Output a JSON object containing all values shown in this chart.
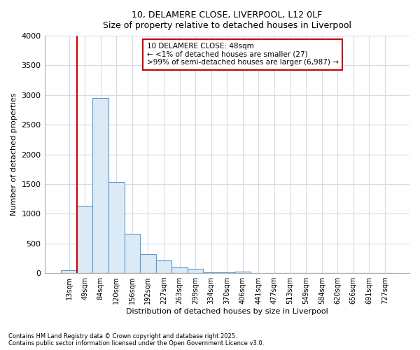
{
  "title_line1": "10, DELAMERE CLOSE, LIVERPOOL, L12 0LF",
  "title_line2": "Size of property relative to detached houses in Liverpool",
  "xlabel": "Distribution of detached houses by size in Liverpool",
  "ylabel": "Number of detached properties",
  "categories": [
    "13sqm",
    "49sqm",
    "84sqm",
    "120sqm",
    "156sqm",
    "192sqm",
    "227sqm",
    "263sqm",
    "299sqm",
    "334sqm",
    "370sqm",
    "406sqm",
    "441sqm",
    "477sqm",
    "513sqm",
    "549sqm",
    "584sqm",
    "620sqm",
    "656sqm",
    "691sqm",
    "727sqm"
  ],
  "values": [
    50,
    1130,
    2950,
    1530,
    660,
    320,
    210,
    100,
    70,
    10,
    10,
    30,
    0,
    0,
    0,
    0,
    0,
    0,
    0,
    0,
    0
  ],
  "bar_color": "#daeaf7",
  "bar_edge_color": "#5b9bd5",
  "vline_color": "#cc0000",
  "vline_x_index": 1,
  "annotation_box_text": "10 DELAMERE CLOSE: 48sqm\n← <1% of detached houses are smaller (27)\n>99% of semi-detached houses are larger (6,987) →",
  "annotation_box_color": "#cc0000",
  "annotation_bg": "white",
  "ylim": [
    0,
    4000
  ],
  "yticks": [
    0,
    500,
    1000,
    1500,
    2000,
    2500,
    3000,
    3500,
    4000
  ],
  "background_color": "#ffffff",
  "grid_color": "#d0dce8",
  "footer_line1": "Contains HM Land Registry data © Crown copyright and database right 2025.",
  "footer_line2": "Contains public sector information licensed under the Open Government Licence v3.0."
}
